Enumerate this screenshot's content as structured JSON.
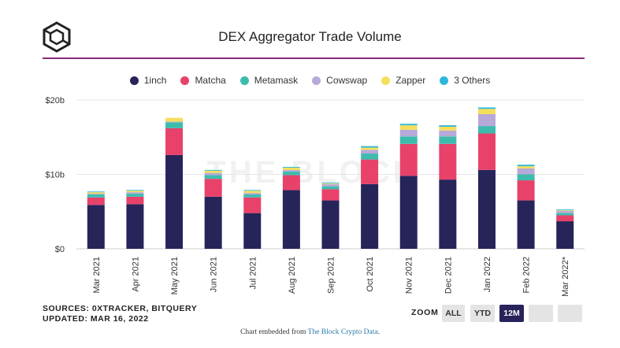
{
  "header": {
    "title": "DEX Aggregator Trade Volume",
    "logo_icon": "the-block-cube-icon"
  },
  "footer": {
    "sources": "SOURCES: 0XTRACKER, BITQUERY",
    "updated": "UPDATED: MAR 16, 2022",
    "embed_prefix": "Chart embedded from ",
    "embed_link": "The Block Crypto Data",
    "embed_suffix": "."
  },
  "zoom": {
    "label": "ZOOM",
    "buttons": [
      {
        "label": "ALL",
        "active": false
      },
      {
        "label": "YTD",
        "active": false
      },
      {
        "label": "12M",
        "active": true
      },
      {
        "label": "",
        "active": false
      },
      {
        "label": "",
        "active": false
      }
    ]
  },
  "colors": {
    "1inch": "#27245a",
    "Matcha": "#e8416a",
    "Metamask": "#3dbcae",
    "Cowswap": "#b7a9d8",
    "Zapper": "#f5df5a",
    "3 Others": "#2fb8dc",
    "accent": "#8a2a7d"
  },
  "chart_data": {
    "type": "bar",
    "stacked": true,
    "title": "DEX Aggregator Trade Volume",
    "watermark": "THE BLOCK",
    "categories": [
      "Mar 2021",
      "Apr 2021",
      "May 2021",
      "Jun 2021",
      "Jul 2021",
      "Aug 2021",
      "Sep 2021",
      "Oct 2021",
      "Nov 2021",
      "Dec 2021",
      "Jan 2022",
      "Feb 2022",
      "Mar 2022*"
    ],
    "series": [
      {
        "name": "1inch",
        "values": [
          5.9,
          6.0,
          12.6,
          7.0,
          4.8,
          7.9,
          6.5,
          8.7,
          9.8,
          9.3,
          10.6,
          6.5,
          3.7
        ]
      },
      {
        "name": "Matcha",
        "values": [
          1.0,
          1.0,
          3.6,
          2.4,
          2.1,
          2.0,
          1.5,
          3.3,
          4.3,
          4.8,
          4.9,
          2.7,
          0.8
        ]
      },
      {
        "name": "Metamask",
        "values": [
          0.4,
          0.4,
          0.8,
          0.5,
          0.4,
          0.5,
          0.4,
          0.8,
          1.0,
          1.0,
          1.0,
          0.8,
          0.3
        ]
      },
      {
        "name": "Cowswap",
        "values": [
          0.1,
          0.2,
          0.1,
          0.3,
          0.2,
          0.2,
          0.3,
          0.5,
          0.9,
          0.8,
          1.6,
          0.8,
          0.3
        ]
      },
      {
        "name": "Zapper",
        "values": [
          0.2,
          0.2,
          0.5,
          0.3,
          0.3,
          0.3,
          0.1,
          0.3,
          0.6,
          0.5,
          0.7,
          0.3,
          0.1
        ]
      },
      {
        "name": "3 Others",
        "values": [
          0.1,
          0.1,
          0.0,
          0.1,
          0.1,
          0.1,
          0.1,
          0.2,
          0.2,
          0.2,
          0.2,
          0.2,
          0.1
        ]
      }
    ],
    "y_ticks": [
      {
        "value": 0,
        "label": "$0"
      },
      {
        "value": 10,
        "label": "$10b"
      },
      {
        "value": 20,
        "label": "$20b"
      }
    ],
    "ylim": [
      0,
      20
    ],
    "xlabel": "",
    "ylabel": "",
    "grid": true,
    "legend_position": "top-center"
  }
}
